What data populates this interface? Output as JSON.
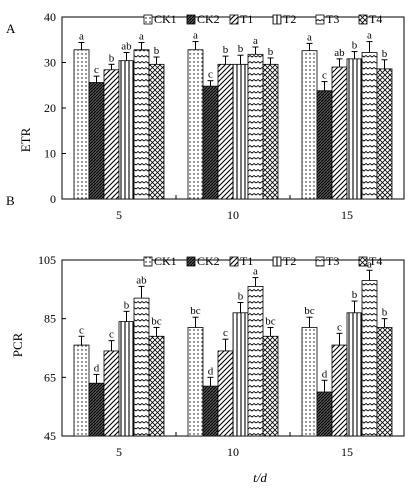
{
  "chart_data": [
    {
      "panel_label": "A",
      "type": "bar",
      "ylabel": "ETR",
      "xlabel": "",
      "categories": [
        "5",
        "10",
        "15"
      ],
      "ylim": [
        0,
        40
      ],
      "yticks": [
        "0",
        "10",
        "20",
        "30",
        "40"
      ],
      "series": [
        {
          "name": "CK1",
          "values": [
            32.8,
            32.8,
            32.6
          ],
          "errors": [
            1.6,
            1.8,
            1.6
          ],
          "letters": [
            "a",
            "a",
            "a"
          ],
          "pattern": "dots"
        },
        {
          "name": "CK2",
          "values": [
            25.6,
            24.8,
            23.8
          ],
          "errors": [
            1.4,
            1.2,
            2.0
          ],
          "letters": [
            "c",
            "c",
            "c"
          ],
          "pattern": "dense"
        },
        {
          "name": "T1",
          "values": [
            28.4,
            29.6,
            29.0
          ],
          "errors": [
            1.2,
            1.8,
            1.8
          ],
          "letters": [
            "b",
            "b",
            "ab"
          ],
          "pattern": "diag"
        },
        {
          "name": "T2",
          "values": [
            30.4,
            29.6,
            30.8
          ],
          "errors": [
            1.8,
            2.0,
            1.6
          ],
          "letters": [
            "ab",
            "b",
            "b"
          ],
          "pattern": "vert"
        },
        {
          "name": "T3",
          "values": [
            32.8,
            31.8,
            32.2
          ],
          "errors": [
            1.6,
            1.6,
            2.4
          ],
          "letters": [
            "a",
            "a",
            "a"
          ],
          "pattern": "wave"
        },
        {
          "name": "T4",
          "values": [
            29.6,
            29.6,
            28.6
          ],
          "errors": [
            1.6,
            1.4,
            2.0
          ],
          "letters": [
            "b",
            "b",
            "b"
          ],
          "pattern": "cross"
        }
      ]
    },
    {
      "panel_label": "B",
      "type": "bar",
      "ylabel": "PCR",
      "xlabel": "t/d",
      "categories": [
        "5",
        "10",
        "15"
      ],
      "ylim": [
        45,
        105
      ],
      "yticks": [
        "45",
        "65",
        "85",
        "105"
      ],
      "series": [
        {
          "name": "CK1",
          "values": [
            76,
            82,
            82
          ],
          "errors": [
            3.0,
            3.5,
            3.5
          ],
          "letters": [
            "c",
            "bc",
            "bc"
          ],
          "pattern": "dots"
        },
        {
          "name": "CK2",
          "values": [
            63,
            62,
            60
          ],
          "errors": [
            3.0,
            3.0,
            4.0
          ],
          "letters": [
            "d",
            "d",
            "d"
          ],
          "pattern": "dense"
        },
        {
          "name": "T1",
          "values": [
            74,
            74,
            76
          ],
          "errors": [
            3.5,
            4.0,
            4.0
          ],
          "letters": [
            "c",
            "c",
            "c"
          ],
          "pattern": "diag"
        },
        {
          "name": "T2",
          "values": [
            84,
            87,
            87
          ],
          "errors": [
            3.5,
            3.5,
            4.0
          ],
          "letters": [
            "b",
            "b",
            "b"
          ],
          "pattern": "vert"
        },
        {
          "name": "T3",
          "values": [
            92,
            96,
            98
          ],
          "errors": [
            4.0,
            3.0,
            3.5
          ],
          "letters": [
            "ab",
            "a",
            "a"
          ],
          "pattern": "wave"
        },
        {
          "name": "T4",
          "values": [
            79,
            79,
            82
          ],
          "errors": [
            3.0,
            3.0,
            3.0
          ],
          "letters": [
            "bc",
            "bc",
            "b"
          ],
          "pattern": "cross"
        }
      ]
    }
  ]
}
